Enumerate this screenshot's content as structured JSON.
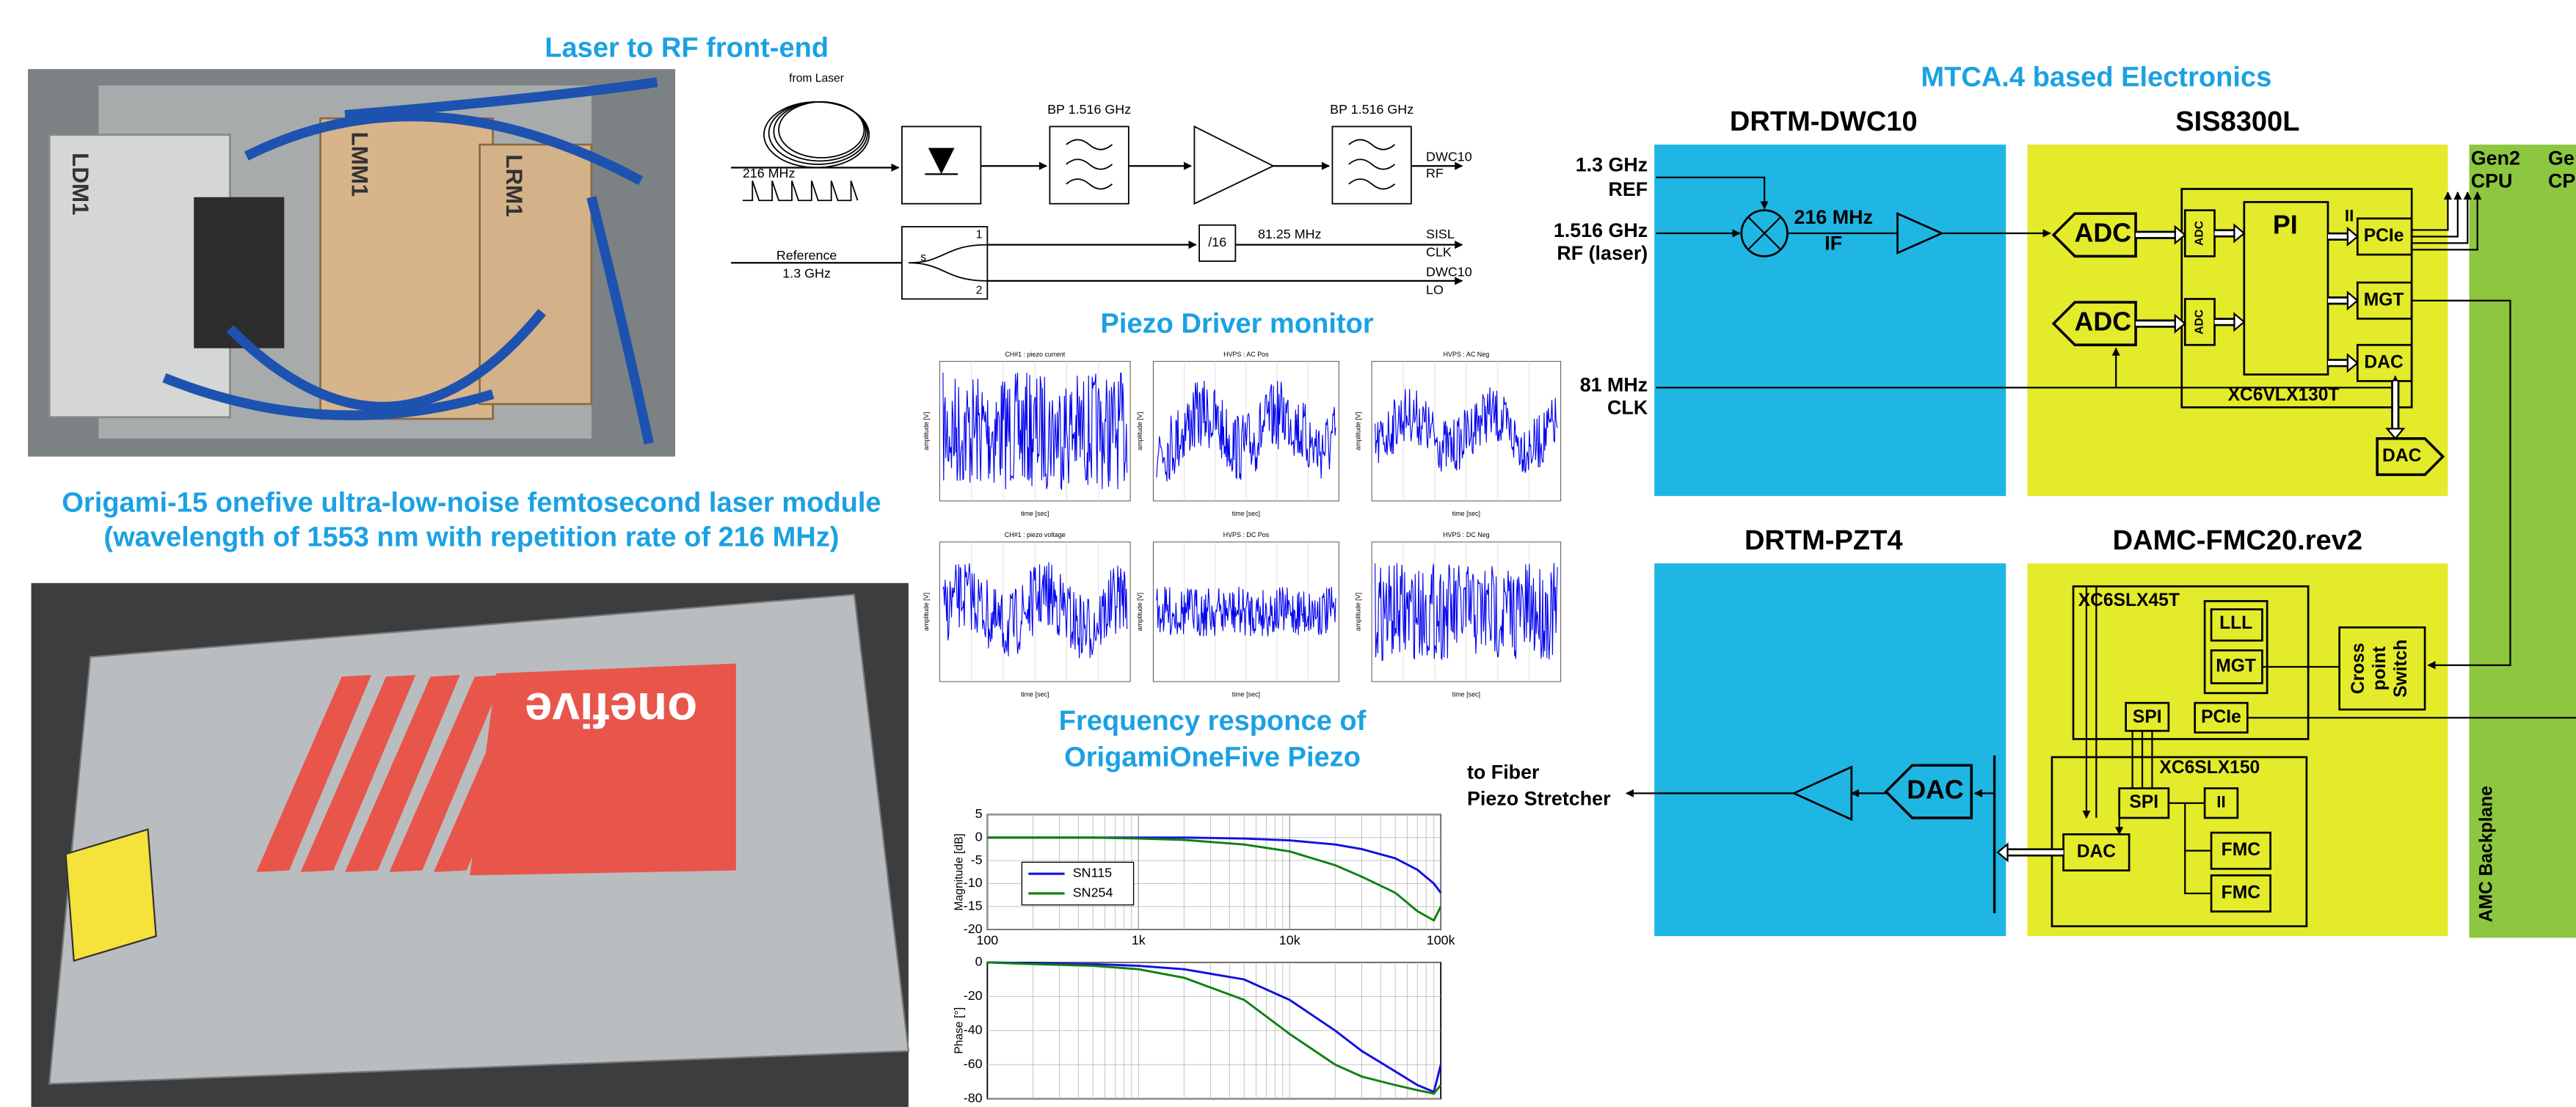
{
  "left": {
    "rf_title": "Laser to RF front-end",
    "photo_labels": [
      "LDM1",
      "LMM1",
      "LRM1"
    ],
    "laser_title": [
      "Origami-15 onefive ultra-low-noise femtosecond laser module",
      "(wavelength of 1553 nm  with repetition rate of 216 MHz)"
    ],
    "laser_brand": "onefive"
  },
  "rf_diagram": {
    "from_laser": "from Laser",
    "rep_rate": "216 MHz",
    "bp1": "BP 1.516 GHz",
    "bp2": "BP 1.516 GHz",
    "out_rf": [
      "DWC10",
      "RF"
    ],
    "reference": [
      "Reference",
      "1.3 GHz"
    ],
    "splitter": [
      "s",
      "1",
      "2"
    ],
    "divider": "/16",
    "div_freq": "81.25 MHz",
    "out_clk": [
      "SISL",
      "CLK"
    ],
    "out_lo": [
      "DWC10",
      "LO"
    ]
  },
  "piezo_monitor": {
    "title": "Piezo Driver monitor",
    "panels": [
      "CH#1 : piezo current",
      "HVPS : AC Pos",
      "HVPS : AC Neg",
      "CH#1 : piezo voltage",
      "HVPS : DC Pos",
      "HVPS : DC Neg"
    ],
    "xlabel": "time [sec]",
    "ylabel": "amplitude [V]"
  },
  "frequency_response_title": [
    "Frequency responce of",
    "OrigamiOneFive Piezo"
  ],
  "chart_data": [
    {
      "type": "line",
      "ylabel": "Magnitude [dB]",
      "xscale": "log",
      "grid": true,
      "legend": "left",
      "x": [
        100,
        200,
        500,
        1000,
        2000,
        5000,
        10000,
        20000,
        30000,
        50000,
        70000,
        90000,
        100000
      ],
      "xlim": [
        100,
        100000
      ],
      "xticks": [
        100,
        {
          "value": 1000,
          "label": "1k"
        },
        {
          "value": 10000,
          "label": "10k"
        },
        {
          "value": 100000,
          "label": "100k"
        }
      ],
      "ylim": [
        -20,
        5
      ],
      "yticks": [
        5,
        0,
        -5,
        -10,
        -15,
        -20
      ],
      "series": [
        {
          "name": "SN115",
          "color": "#1010e0",
          "values": [
            0,
            0,
            0,
            0,
            0,
            -0.2,
            -0.6,
            -1.5,
            -2.5,
            -4.5,
            -7,
            -10,
            -12
          ]
        },
        {
          "name": "SN254",
          "color": "#108010",
          "values": [
            0,
            0,
            0,
            -0.2,
            -0.5,
            -1.5,
            -3,
            -6,
            -8.5,
            -12,
            -16,
            -18,
            -15
          ]
        }
      ]
    },
    {
      "type": "line",
      "ylabel": "Phase [°]",
      "xscale": "log",
      "grid": true,
      "x": [
        100,
        200,
        500,
        1000,
        2000,
        5000,
        10000,
        20000,
        30000,
        50000,
        70000,
        90000,
        100000
      ],
      "xlim": [
        100,
        100000
      ],
      "ylim": [
        -80,
        0
      ],
      "yticks": [
        0,
        -20,
        -40,
        -60,
        -80
      ],
      "series": [
        {
          "color": "#1010e0",
          "values": [
            0,
            -0.5,
            -1,
            -2,
            -4,
            -10,
            -22,
            -40,
            -52,
            -64,
            -72,
            -76,
            -60
          ]
        },
        {
          "color": "#108010",
          "values": [
            0,
            -1,
            -2,
            -4,
            -9,
            -22,
            -42,
            -60,
            -67,
            -72,
            -75,
            -77,
            -72
          ]
        }
      ]
    }
  ],
  "to_fiber": [
    "to Fiber",
    "Piezo Stretcher"
  ],
  "electronics": {
    "title": "MTCA.4 based Electronics",
    "dwc10": {
      "title": "DRTM-DWC10",
      "inputs": [
        [
          "1.3 GHz",
          "REF"
        ],
        [
          "1.516 GHz",
          "RF (laser)"
        ],
        [
          "81 MHz",
          "CLK"
        ]
      ],
      "if": [
        "216 MHz",
        "IF"
      ]
    },
    "sis8300l": {
      "title": "SIS8300L",
      "adc": [
        "ADC",
        "ADC"
      ],
      "small_adc": [
        "ADC",
        "ADC"
      ],
      "fpga": "XC6VLX130T",
      "pi": "PI",
      "ii": "II",
      "pcie": "PCIe",
      "mgt": "MGT",
      "dac": "DAC",
      "ext_dac": "DAC"
    },
    "backplane": {
      "label": "AMC Backplane",
      "cpu1": [
        "Gen2",
        "CPU"
      ],
      "cpu2": [
        "Ge",
        "CP"
      ]
    },
    "pzt4": {
      "title": "DRTM-PZT4",
      "dac": "DAC"
    },
    "fmc20": {
      "title": "DAMC-FMC20.rev2",
      "fpga1": "XC6SLX45T",
      "lll": "LLL",
      "mgt": "MGT",
      "switch": [
        "Cross",
        "point",
        "Switch"
      ],
      "spi1": "SPI",
      "pcie": "PCIe",
      "fpga2": "XC6SLX150",
      "spi2": "SPI",
      "ii": "II",
      "fmc": [
        "FMC",
        "FMC"
      ],
      "dac": "DAC"
    }
  }
}
